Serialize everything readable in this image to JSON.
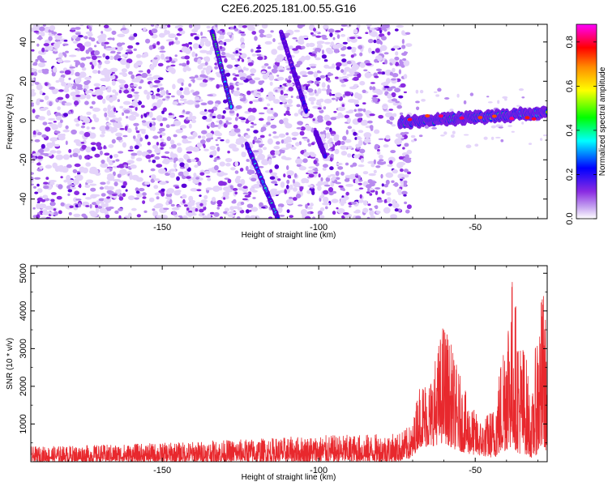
{
  "title": "C2E6.2025.181.00.55.G16",
  "chart_data": [
    {
      "type": "heatmap",
      "xlabel": "Height of straight line (km)",
      "ylabel": "Frequency (Hz)",
      "xlim": [
        -192,
        -27
      ],
      "ylim": [
        -50,
        49
      ],
      "x_ticks": [
        -150,
        -100,
        -50
      ],
      "y_ticks": [
        -40,
        -20,
        0,
        20,
        40
      ],
      "colorbar": {
        "label": "Normalized spectral amplitude",
        "range": [
          0,
          0.88
        ],
        "ticks": [
          0.0,
          0.2,
          0.4,
          0.6,
          0.8
        ],
        "colormap": [
          "#ffffff",
          "#8a2be2",
          "#0000ff",
          "#00ffff",
          "#00ff00",
          "#ffff00",
          "#ff8c00",
          "#ff0000",
          "#ff00ff"
        ]
      },
      "features": [
        {
          "kind": "noise",
          "x": [
            -192,
            -71
          ],
          "y": [
            -50,
            49
          ]
        },
        {
          "kind": "track",
          "x": [
            -134,
            -128
          ],
          "y": [
            45,
            7
          ],
          "level": 0.45
        },
        {
          "kind": "track",
          "x": [
            -123,
            -113
          ],
          "y": [
            -12,
            -50
          ],
          "level": 0.35
        },
        {
          "kind": "track",
          "x": [
            -112,
            -104
          ],
          "y": [
            45,
            5
          ],
          "level": 0.2
        },
        {
          "kind": "track",
          "x": [
            -101,
            -98
          ],
          "y": [
            -6,
            -18
          ],
          "level": 0.35
        },
        {
          "kind": "carrier",
          "x": [
            -74,
            -27
          ],
          "y": [
            -1,
            4
          ],
          "level": 0.75
        }
      ]
    },
    {
      "type": "line",
      "xlabel": "Height of straight line (km)",
      "ylabel": "SNR (10 * v/v)",
      "xlim": [
        -192,
        -27
      ],
      "ylim": [
        0,
        5200
      ],
      "x_ticks": [
        -150,
        -100,
        -50
      ],
      "y_ticks": [
        1000,
        2000,
        3000,
        4000,
        5000
      ],
      "color": "#e8282d",
      "envelope": {
        "x": [
          -192,
          -150,
          -100,
          -75,
          -70,
          -68,
          -64,
          -60,
          -56,
          -52,
          -48,
          -44,
          -42,
          -40,
          -38,
          -36,
          -34,
          -32,
          -30,
          -28,
          -27
        ],
        "y_max": [
          400,
          500,
          700,
          750,
          1000,
          2100,
          2300,
          3850,
          2600,
          1600,
          1100,
          1500,
          2700,
          4300,
          5100,
          3400,
          3100,
          1500,
          4000,
          4750,
          2800
        ],
        "y_min": [
          0,
          0,
          0,
          0,
          100,
          400,
          400,
          500,
          300,
          200,
          150,
          100,
          200,
          300,
          400,
          200,
          200,
          100,
          200,
          300,
          300
        ]
      }
    }
  ]
}
